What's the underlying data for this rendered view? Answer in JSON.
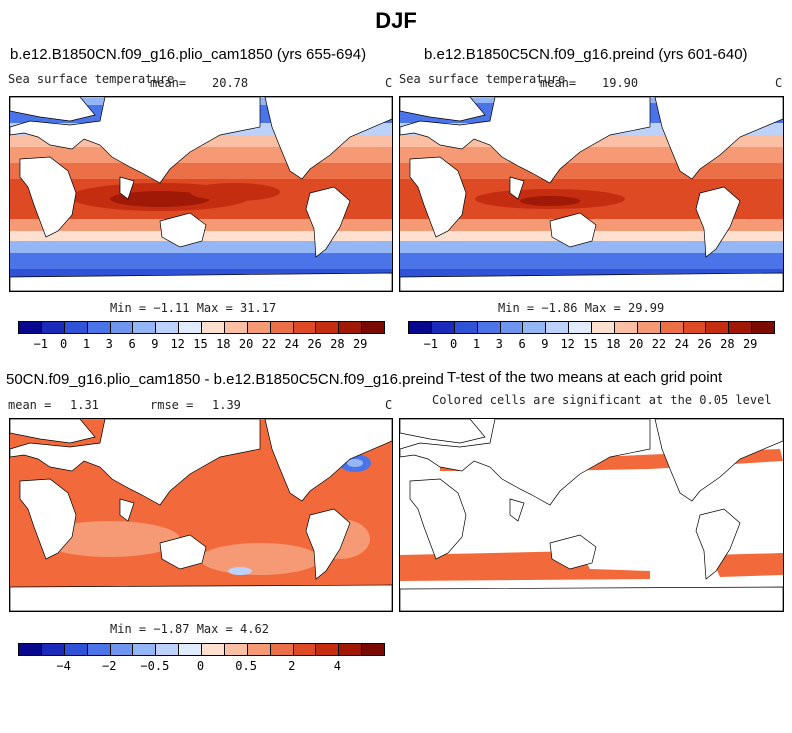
{
  "page": {
    "title": "DJF"
  },
  "panels": [
    {
      "title": "b.e12.B1850CN.f09_g16.plio_cam1850 (yrs 655-694)",
      "variable": "Sea surface temperature",
      "mean_label": "mean=",
      "mean_value": "20.78",
      "units": "C",
      "minmax": "Min =  −1.11 Max =  31.17",
      "colorbar_ticks": [
        "−1",
        "0",
        "1",
        "3",
        "6",
        "9",
        "12",
        "15",
        "18",
        "20",
        "22",
        "24",
        "26",
        "28",
        "29"
      ]
    },
    {
      "title": "b.e12.B1850C5CN.f09_g16.preind (yrs 601-640)",
      "variable": "Sea surface temperature",
      "mean_label": "mean=",
      "mean_value": "19.90",
      "units": "C",
      "minmax": "Min =  −1.86 Max =  29.99",
      "colorbar_ticks": [
        "−1",
        "0",
        "1",
        "3",
        "6",
        "9",
        "12",
        "15",
        "18",
        "20",
        "22",
        "24",
        "26",
        "28",
        "29"
      ]
    },
    {
      "title": "50CN.f09_g16.plio_cam1850 - b.e12.B1850C5CN.f09_g16.preind",
      "mean_label": "mean =",
      "mean_value": "1.31",
      "rmse_label": "rmse =",
      "rmse_value": "1.39",
      "units": "C",
      "minmax": "Min =  −1.87 Max =   4.62",
      "colorbar_ticks": [
        "−4",
        "−2",
        "−0.5",
        "0",
        "0.5",
        "2",
        "4"
      ]
    },
    {
      "title": "T-test of the two means at each grid point",
      "subtitle": "Colored cells are significant at the 0.05 level"
    }
  ],
  "colors": {
    "sst_palette": [
      "#08088f",
      "#1b2ab8",
      "#2f52d6",
      "#4a74e8",
      "#6e96f0",
      "#95b6f5",
      "#bcd2fa",
      "#e0ebfc",
      "#fde0d0",
      "#fbbfa4",
      "#f59a75",
      "#ec7047",
      "#dd4a24",
      "#c52d10",
      "#a01806",
      "#7a0a02"
    ],
    "diff_palette": [
      "#08088f",
      "#1b2ab8",
      "#2f52d6",
      "#4a74e8",
      "#6e96f0",
      "#95b6f5",
      "#bcd2fa",
      "#e0ebfc",
      "#fde0d0",
      "#fbbfa4",
      "#f59a75",
      "#ec7047",
      "#dd4a24",
      "#c52d10",
      "#a01806",
      "#7a0a02"
    ],
    "land": "#ffffff",
    "significant": "#f26a3c"
  }
}
